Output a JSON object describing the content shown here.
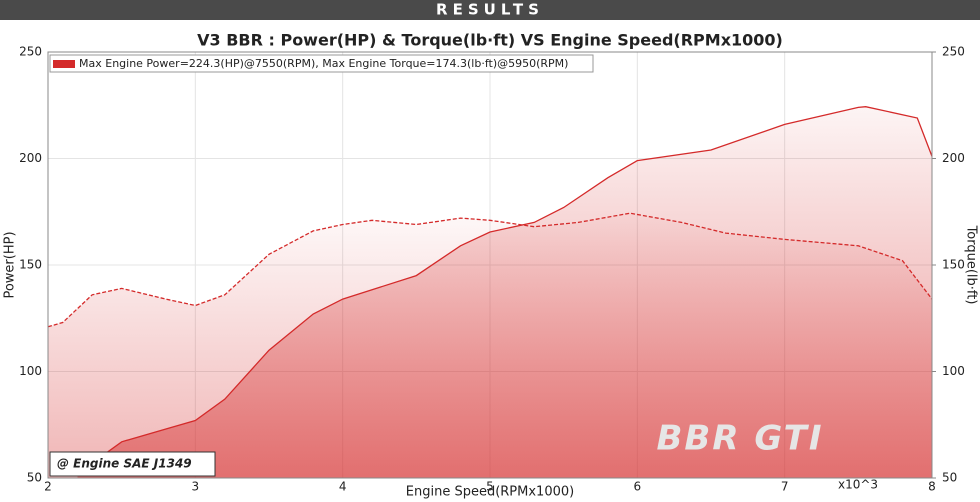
{
  "header": "RESULTS",
  "chart_data": {
    "type": "line",
    "title": "V3 BBR : Power(HP) & Torque(lb·ft) VS Engine Speed(RPMx1000)",
    "legend_text": "Max Engine Power=224.3(HP)@7550(RPM), Max Engine Torque=174.3(lb·ft)@5950(RPM)",
    "annotation": "@ Engine SAE J1349",
    "watermark": "BBR GTI",
    "x_label": "Engine Speed(RPMx1000)",
    "x_multiplier": "x10^3",
    "y_label": "Power(HP)",
    "y2_label": "Torque(lb·ft)",
    "xlim": [
      2,
      8
    ],
    "xticks": [
      2,
      3,
      4,
      5,
      6,
      7,
      8
    ],
    "ylim": [
      50,
      250
    ],
    "yticks": [
      50,
      100,
      150,
      200,
      250
    ],
    "y2lim": [
      50,
      250
    ],
    "y2ticks": [
      50,
      100,
      150,
      200,
      250
    ],
    "grid": true,
    "series": [
      {
        "color": "#d42a2a",
        "dash": false,
        "x": [
          2.2,
          2.5,
          2.8,
          3.0,
          3.2,
          3.5,
          3.8,
          4.0,
          4.5,
          4.8,
          5.0,
          5.3,
          5.5,
          5.8,
          6.0,
          6.5,
          7.0,
          7.5,
          7.55,
          7.9,
          8.0
        ],
        "values": [
          52,
          67,
          73,
          77,
          87,
          110,
          127,
          134,
          145,
          159,
          165.5,
          170,
          177,
          191,
          199,
          204,
          216,
          224,
          224.3,
          219,
          201
        ]
      },
      {
        "color": "#d42a2a",
        "dash": true,
        "axis": "y2",
        "x": [
          2.0,
          2.1,
          2.3,
          2.5,
          2.8,
          3.0,
          3.2,
          3.5,
          3.8,
          4.0,
          4.2,
          4.5,
          4.8,
          5.0,
          5.3,
          5.6,
          5.95,
          6.3,
          6.6,
          7.0,
          7.5,
          7.8,
          8.0
        ],
        "values": [
          121,
          123,
          136,
          139,
          134,
          131,
          136,
          155,
          166,
          169,
          171,
          169,
          172,
          171,
          168,
          170,
          174.3,
          170,
          165,
          162,
          159,
          152,
          134
        ]
      }
    ]
  }
}
